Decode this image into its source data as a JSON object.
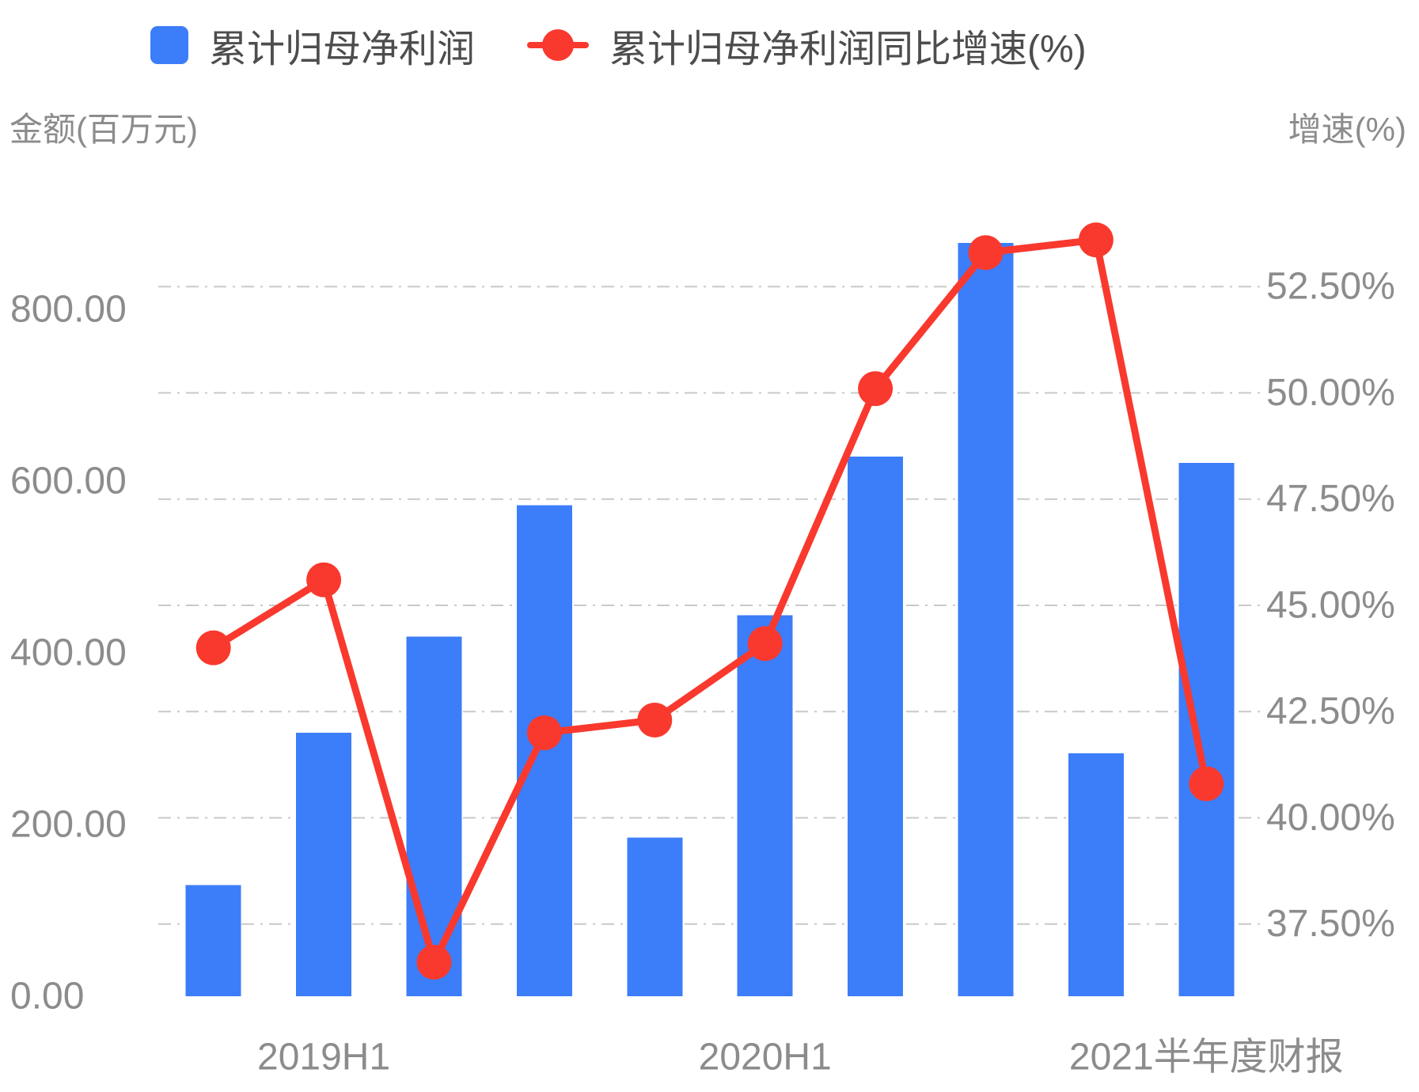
{
  "legend": {
    "items": [
      {
        "label": "累计归母净利润",
        "type": "bar",
        "color": "#3c7dfa"
      },
      {
        "label": "累计归母净利润同比增速(%)",
        "type": "line",
        "color": "#f9392e"
      }
    ]
  },
  "left_axis": {
    "title": "金额(百万元)",
    "tick_labels": [
      "0.00",
      "200.00",
      "400.00",
      "600.00",
      "800.00"
    ],
    "tick_values": [
      0,
      200,
      400,
      600,
      800
    ]
  },
  "right_axis": {
    "title": "增速(%)",
    "tick_labels": [
      "37.50%",
      "40.00%",
      "42.50%",
      "45.00%",
      "47.50%",
      "50.00%",
      "52.50%"
    ],
    "tick_values": [
      37.5,
      40,
      42.5,
      45,
      47.5,
      50,
      52.5
    ]
  },
  "x_axis": {
    "labels": [
      "",
      "2019H1",
      "",
      "",
      "",
      "2020H1",
      "",
      "",
      "",
      "2021半年度财报"
    ]
  },
  "chart_data": {
    "type": "combo",
    "categories": [
      "",
      "2019H1",
      "",
      "",
      "",
      "2020H1",
      "",
      "",
      "",
      "2021半年度财报"
    ],
    "series": [
      {
        "name": "累计归母净利润",
        "type": "bar",
        "y_axis": "left",
        "color": "#3c7dfa",
        "values": [
          129.6,
          306.7,
          418.9,
          571.8,
          184.9,
          443.9,
          628.3,
          877.2,
          283.1,
          620.9
        ]
      },
      {
        "name": "累计归母净利润同比增速(%)",
        "type": "line",
        "y_axis": "right",
        "color": "#f9392e",
        "values": [
          44.0,
          45.6,
          36.6,
          42.0,
          42.3,
          44.1,
          50.1,
          53.3,
          53.6,
          40.8
        ]
      }
    ],
    "left_ylabel": "金额(百万元)",
    "right_ylabel": "增速(%)",
    "left_ylim": [
      0,
      950
    ],
    "right_ylim": [
      35.8,
      55.0
    ],
    "grid": "horizontal dash-dot lines at right-axis ticks",
    "legend_position": "top-left",
    "colors": {
      "bar": "#3c7dfa",
      "line": "#f9392e",
      "axis_text": "#8c8c8c",
      "legend_text": "#4d4d4d",
      "gridline": "#c9c9c9"
    }
  }
}
